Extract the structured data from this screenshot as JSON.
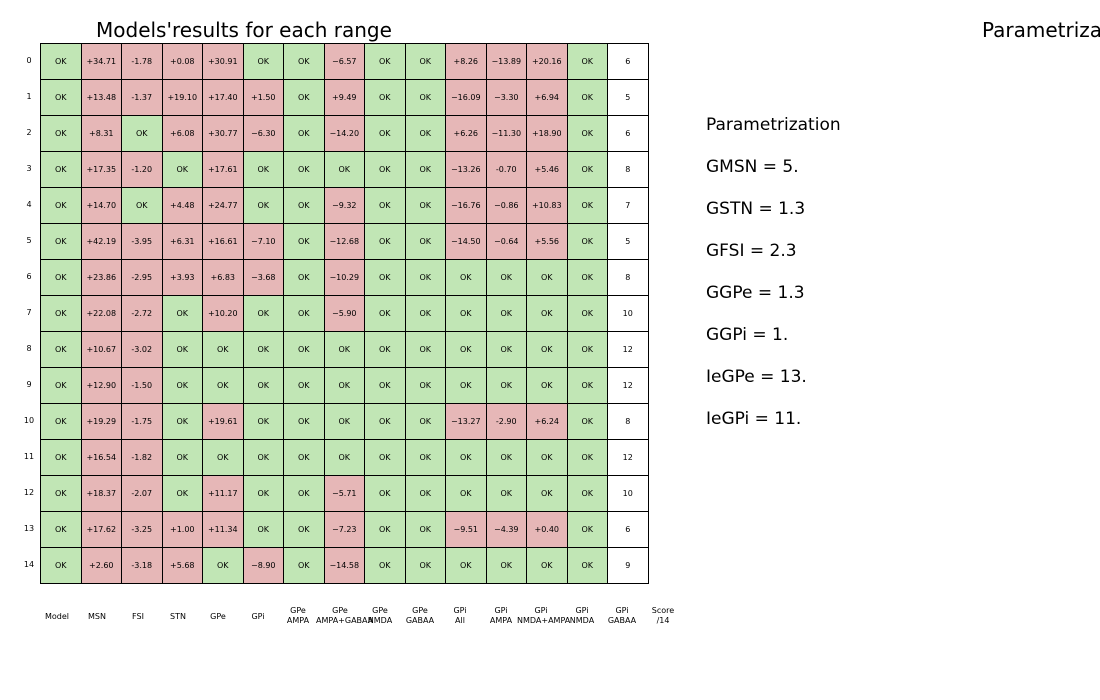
{
  "title": "Models'results for each range",
  "right_title": "Parametriza",
  "parametrization": {
    "heading": "Parametrization",
    "lines": [
      "GMSN = 5.",
      "GSTN = 1.3",
      "GFSI = 2.3",
      "GGPe = 1.3",
      "GGPi = 1.",
      "IeGPe = 13.",
      "IeGPi = 11."
    ]
  },
  "colors": {
    "ok": "#c1e6b5",
    "bad": "#e6b7b7",
    "score": "#ffffff"
  },
  "chart_data": {
    "type": "table",
    "title": "Models'results for each range",
    "columns": [
      "Model",
      "MSN",
      "FSI",
      "STN",
      "GPe",
      "GPi",
      "GPe\nAMPA",
      "GPe\nAMPA+GABAA",
      "GPe\nNMDA",
      "GPe\nGABAA",
      "GPi\nAll",
      "GPi\nAMPA",
      "GPi\nNMDA+AMPA",
      "GPi\nNMDA",
      "GPi\nGABAA",
      "Score\n/14"
    ],
    "row_labels": [
      "0",
      "1",
      "2",
      "3",
      "4",
      "5",
      "6",
      "7",
      "8",
      "9",
      "10",
      "11",
      "12",
      "13",
      "14"
    ],
    "rows": [
      [
        "OK",
        "+34.71",
        "-1.78",
        "+0.08",
        "+30.91",
        "OK",
        "OK",
        "−6.57",
        "OK",
        "OK",
        "+8.26",
        "−13.89",
        "+20.16",
        "OK",
        "6"
      ],
      [
        "OK",
        "+13.48",
        "-1.37",
        "+19.10",
        "+17.40",
        "+1.50",
        "OK",
        "+9.49",
        "OK",
        "OK",
        "−16.09",
        "−3.30",
        "+6.94",
        "OK",
        "5"
      ],
      [
        "OK",
        "+8.31",
        "OK",
        "+6.08",
        "+30.77",
        "−6.30",
        "OK",
        "−14.20",
        "OK",
        "OK",
        "+6.26",
        "−11.30",
        "+18.90",
        "OK",
        "6"
      ],
      [
        "OK",
        "+17.35",
        "-1.20",
        "OK",
        "+17.61",
        "OK",
        "OK",
        "OK",
        "OK",
        "OK",
        "−13.26",
        "-0.70",
        "+5.46",
        "OK",
        "8"
      ],
      [
        "OK",
        "+14.70",
        "OK",
        "+4.48",
        "+24.77",
        "OK",
        "OK",
        "−9.32",
        "OK",
        "OK",
        "−16.76",
        "−0.86",
        "+10.83",
        "OK",
        "7"
      ],
      [
        "OK",
        "+42.19",
        "-3.95",
        "+6.31",
        "+16.61",
        "−7.10",
        "OK",
        "−12.68",
        "OK",
        "OK",
        "−14.50",
        "−0.64",
        "+5.56",
        "OK",
        "5"
      ],
      [
        "OK",
        "+23.86",
        "-2.95",
        "+3.93",
        "+6.83",
        "−3.68",
        "OK",
        "−10.29",
        "OK",
        "OK",
        "OK",
        "OK",
        "OK",
        "OK",
        "8"
      ],
      [
        "OK",
        "+22.08",
        "-2.72",
        "OK",
        "+10.20",
        "OK",
        "OK",
        "−5.90",
        "OK",
        "OK",
        "OK",
        "OK",
        "OK",
        "OK",
        "10"
      ],
      [
        "OK",
        "+10.67",
        "-3.02",
        "OK",
        "OK",
        "OK",
        "OK",
        "OK",
        "OK",
        "OK",
        "OK",
        "OK",
        "OK",
        "OK",
        "12"
      ],
      [
        "OK",
        "+12.90",
        "-1.50",
        "OK",
        "OK",
        "OK",
        "OK",
        "OK",
        "OK",
        "OK",
        "OK",
        "OK",
        "OK",
        "OK",
        "12"
      ],
      [
        "OK",
        "+19.29",
        "-1.75",
        "OK",
        "+19.61",
        "OK",
        "OK",
        "OK",
        "OK",
        "OK",
        "−13.27",
        "-2.90",
        "+6.24",
        "OK",
        "8"
      ],
      [
        "OK",
        "+16.54",
        "-1.82",
        "OK",
        "OK",
        "OK",
        "OK",
        "OK",
        "OK",
        "OK",
        "OK",
        "OK",
        "OK",
        "OK",
        "12"
      ],
      [
        "OK",
        "+18.37",
        "-2.07",
        "OK",
        "+11.17",
        "OK",
        "OK",
        "−5.71",
        "OK",
        "OK",
        "OK",
        "OK",
        "OK",
        "OK",
        "10"
      ],
      [
        "OK",
        "+17.62",
        "-3.25",
        "+1.00",
        "+11.34",
        "OK",
        "OK",
        "−7.23",
        "OK",
        "OK",
        "−9.51",
        "−4.39",
        "+0.40",
        "OK",
        "6"
      ],
      [
        "OK",
        "+2.60",
        "-3.18",
        "+5.68",
        "OK",
        "−8.90",
        "OK",
        "−14.58",
        "OK",
        "OK",
        "OK",
        "OK",
        "OK",
        "OK",
        "9"
      ]
    ]
  }
}
